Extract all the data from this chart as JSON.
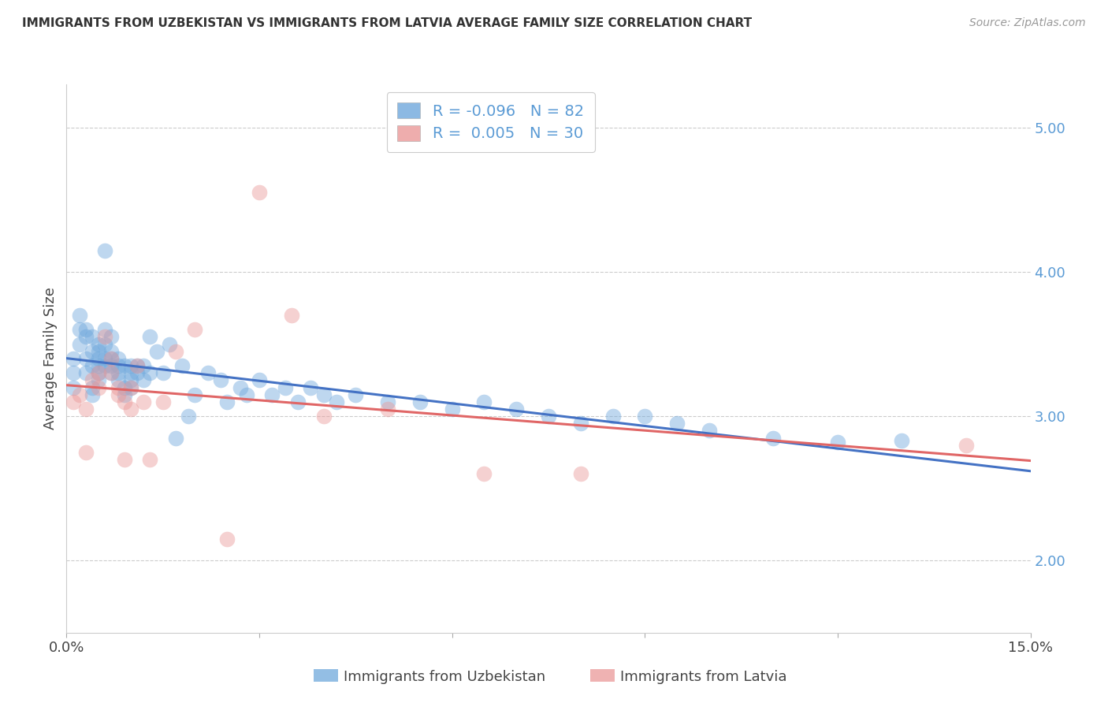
{
  "title": "IMMIGRANTS FROM UZBEKISTAN VS IMMIGRANTS FROM LATVIA AVERAGE FAMILY SIZE CORRELATION CHART",
  "source": "Source: ZipAtlas.com",
  "ylabel": "Average Family Size",
  "right_yticks": [
    2.0,
    3.0,
    4.0,
    5.0
  ],
  "right_ytick_labels": [
    "2.00",
    "3.00",
    "4.00",
    "5.00"
  ],
  "xlim": [
    0.0,
    0.15
  ],
  "ylim": [
    1.5,
    5.3
  ],
  "uzbekistan_color": "#6fa8dc",
  "latvia_color": "#ea9999",
  "uzbekistan_line_color": "#4472c4",
  "latvia_line_color": "#e06666",
  "uzbekistan_R": -0.096,
  "uzbekistan_N": 82,
  "latvia_R": 0.005,
  "latvia_N": 30,
  "uzbekistan_x": [
    0.001,
    0.001,
    0.001,
    0.002,
    0.002,
    0.002,
    0.003,
    0.003,
    0.003,
    0.003,
    0.004,
    0.004,
    0.004,
    0.004,
    0.004,
    0.005,
    0.005,
    0.005,
    0.005,
    0.005,
    0.005,
    0.006,
    0.006,
    0.006,
    0.006,
    0.006,
    0.007,
    0.007,
    0.007,
    0.007,
    0.007,
    0.008,
    0.008,
    0.008,
    0.008,
    0.009,
    0.009,
    0.009,
    0.01,
    0.01,
    0.01,
    0.01,
    0.011,
    0.011,
    0.012,
    0.012,
    0.013,
    0.013,
    0.014,
    0.015,
    0.016,
    0.017,
    0.018,
    0.019,
    0.02,
    0.022,
    0.024,
    0.025,
    0.027,
    0.028,
    0.03,
    0.032,
    0.034,
    0.036,
    0.038,
    0.04,
    0.042,
    0.045,
    0.05,
    0.055,
    0.06,
    0.065,
    0.07,
    0.075,
    0.08,
    0.085,
    0.09,
    0.095,
    0.1,
    0.11,
    0.12,
    0.13
  ],
  "uzbekistan_y": [
    3.2,
    3.3,
    3.4,
    3.6,
    3.7,
    3.5,
    3.4,
    3.55,
    3.3,
    3.6,
    3.55,
    3.45,
    3.2,
    3.15,
    3.35,
    3.25,
    3.5,
    3.3,
    3.45,
    3.4,
    3.35,
    4.15,
    3.4,
    3.35,
    3.5,
    3.6,
    3.55,
    3.4,
    3.35,
    3.45,
    3.3,
    3.35,
    3.4,
    3.3,
    3.25,
    3.2,
    3.15,
    3.35,
    3.3,
    3.2,
    3.35,
    3.25,
    3.35,
    3.3,
    3.25,
    3.35,
    3.55,
    3.3,
    3.45,
    3.3,
    3.5,
    2.85,
    3.35,
    3.0,
    3.15,
    3.3,
    3.25,
    3.1,
    3.2,
    3.15,
    3.25,
    3.15,
    3.2,
    3.1,
    3.2,
    3.15,
    3.1,
    3.15,
    3.1,
    3.1,
    3.05,
    3.1,
    3.05,
    3.0,
    2.95,
    3.0,
    3.0,
    2.95,
    2.9,
    2.85,
    2.82,
    2.83
  ],
  "latvia_x": [
    0.001,
    0.002,
    0.003,
    0.003,
    0.004,
    0.005,
    0.005,
    0.006,
    0.007,
    0.007,
    0.008,
    0.008,
    0.009,
    0.009,
    0.01,
    0.01,
    0.011,
    0.012,
    0.013,
    0.015,
    0.017,
    0.02,
    0.025,
    0.03,
    0.035,
    0.04,
    0.05,
    0.065,
    0.08,
    0.14
  ],
  "latvia_y": [
    3.1,
    3.15,
    3.05,
    2.75,
    3.25,
    3.3,
    3.2,
    3.55,
    3.4,
    3.3,
    3.2,
    3.15,
    3.1,
    2.7,
    3.05,
    3.2,
    3.35,
    3.1,
    2.7,
    3.1,
    3.45,
    3.6,
    2.15,
    4.55,
    3.7,
    3.0,
    3.05,
    2.6,
    2.6,
    2.8
  ],
  "grid_color": "#cccccc",
  "bg_color": "#ffffff",
  "marker_size": 200,
  "alpha": 0.45
}
